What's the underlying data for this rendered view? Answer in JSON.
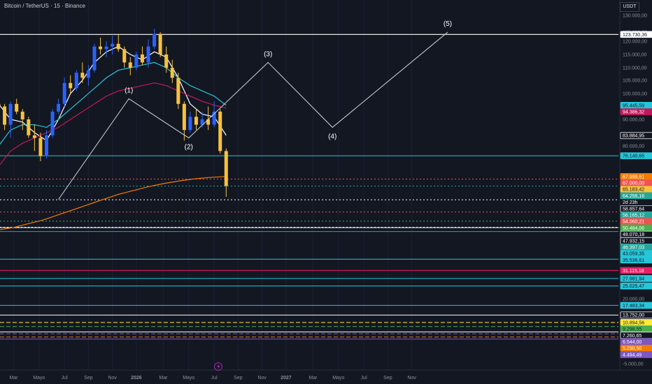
{
  "header": {
    "title": "Bitcoin / TetherUS · 15 · Binance",
    "currency": "USDT"
  },
  "chart_data": {
    "type": "candlestick",
    "title": "Bitcoin / TetherUS · 15 · Binance",
    "y_axis": {
      "side": "right",
      "ticks": [
        "130.000,00",
        "125.000,00",
        "120.000,00",
        "115.000,00",
        "110.000,00",
        "105.000,00",
        "100.000,00",
        "90.000,00",
        "80.000,00",
        "20.000,00",
        "-5.000,00"
      ],
      "tick_values": [
        130000,
        125000,
        120000,
        115000,
        110000,
        105000,
        100000,
        90000,
        80000,
        20000,
        -5000
      ],
      "range": [
        -5000,
        130000
      ]
    },
    "x_axis": {
      "ticks": [
        "Mar",
        "Mayo",
        "Jul",
        "Sep",
        "Nov",
        "2026",
        "Mar",
        "Mayo",
        "Jul",
        "Sep",
        "Nov",
        "2027",
        "Mar",
        "Mayo",
        "Jul",
        "Sep",
        "Nov"
      ],
      "bold_ticks": [
        "2026",
        "2027"
      ]
    },
    "price_levels": [
      {
        "label": "123.730,36",
        "value": 123730.36,
        "color": "#ffffff",
        "bg": "#ffffff",
        "fg": "#131722",
        "style": "solid"
      },
      {
        "label": "95.445,59",
        "value": 95445.59,
        "color": "#26c6da",
        "bg": "#26c6da",
        "fg": "#131722",
        "style": "none"
      },
      {
        "label": "94.386,32",
        "value": 94386.32,
        "color": "#c2185b",
        "bg": "#c2185b",
        "fg": "#ffffff",
        "style": "none"
      },
      {
        "label": "83.884,95",
        "value": 83884.95,
        "color": "#ffffff",
        "bg": "#131722",
        "fg": "#ffffff",
        "style": "none"
      },
      {
        "label": "76.140,65",
        "value": 76140.65,
        "color": "#26c6da",
        "bg": "#26c6da",
        "fg": "#131722",
        "style": "solid"
      },
      {
        "label": "67.999,61",
        "value": 67999.61,
        "color": "#f57c00",
        "bg": "#f57c00",
        "fg": "#ffffff",
        "style": "none"
      },
      {
        "label": "67.000,00",
        "value": 67000,
        "color": "#ef5350",
        "bg": "#ef5350",
        "fg": "#ffffff",
        "style": "dotted"
      },
      {
        "label": "65.183,42",
        "value": 65183.42,
        "color": "#f7c23b",
        "bg": "#f7c23b",
        "fg": "#131722",
        "style": "none"
      },
      {
        "label": "64.256,16",
        "value": 64256.16,
        "color": "#26a69a",
        "bg": "#26a69a",
        "fg": "#ffffff",
        "style": "dotted"
      },
      {
        "label": "58.857,64",
        "value": 58857.64,
        "color": "#ffffff",
        "bg": "#131722",
        "fg": "#ffffff",
        "style": "dotted"
      },
      {
        "label": "56.165,12",
        "value": 56165.12,
        "color": "#26a69a",
        "bg": "#26a69a",
        "fg": "#ffffff",
        "style": "none"
      },
      {
        "label": "54.060,21",
        "value": 54060.21,
        "color": "#ef5350",
        "bg": "#ef5350",
        "fg": "#ffffff",
        "style": "dotted"
      },
      {
        "label": "50.484,06",
        "value": 50484.06,
        "color": "#4caf50",
        "bg": "#4caf50",
        "fg": "#ffffff",
        "style": "dotted"
      },
      {
        "label": "48.070,18",
        "value": 48070.18,
        "color": "#ffffff",
        "bg": "#131722",
        "fg": "#ffffff",
        "style": "dotted"
      },
      {
        "label": "47.932,15",
        "value": 47932.15,
        "color": "#ffffff",
        "bg": "#131722",
        "fg": "#ffffff",
        "style": "solid"
      },
      {
        "label": "46.397,03",
        "value": 46397.03,
        "color": "#26a69a",
        "bg": "#26a69a",
        "fg": "#ffffff",
        "style": "solid"
      },
      {
        "label": "43.059,35",
        "value": 43059.35,
        "color": "#26c6da",
        "bg": "#26c6da",
        "fg": "#131722",
        "style": "none"
      },
      {
        "label": "35.536,61",
        "value": 35536.61,
        "color": "#26c6da",
        "bg": "#26c6da",
        "fg": "#131722",
        "style": "solid"
      },
      {
        "label": "31.115,18",
        "value": 31115.18,
        "color": "#e91e63",
        "bg": "#e91e63",
        "fg": "#ffffff",
        "style": "solid"
      },
      {
        "label": "27.981,94",
        "value": 27981.94,
        "color": "#26c6da",
        "bg": "#26c6da",
        "fg": "#131722",
        "style": "solid"
      },
      {
        "label": "25.025,47",
        "value": 25025.47,
        "color": "#26c6da",
        "bg": "#26c6da",
        "fg": "#131722",
        "style": "solid"
      },
      {
        "label": "17.483,34",
        "value": 17483.34,
        "color": "#26c6da",
        "bg": "#26c6da",
        "fg": "#131722",
        "style": "solid"
      },
      {
        "label": "13.752,00",
        "value": 13752,
        "color": "#ffffff",
        "bg": "#131722",
        "fg": "#ffffff",
        "style": "solid"
      },
      {
        "label": "10.894,56",
        "value": 10894.56,
        "color": "#ffeb3b",
        "bg": "#ffeb3b",
        "fg": "#131722",
        "style": "dashed"
      },
      {
        "label": "9.298,55",
        "value": 9298.55,
        "color": "#4caf50",
        "bg": "#4caf50",
        "fg": "#131722",
        "style": "dashed"
      },
      {
        "label": "7.260,65",
        "value": 7260.65,
        "color": "#ffffff",
        "bg": "#131722",
        "fg": "#ffffff",
        "style": "solid"
      },
      {
        "label": "6.544,00",
        "value": 6544,
        "color": "#7e57c2",
        "bg": "#7e57c2",
        "fg": "#ffffff",
        "style": "dashed"
      },
      {
        "label": "5.290,50",
        "value": 5290.5,
        "color": "#f57c00",
        "bg": "#f57c00",
        "fg": "#ffffff",
        "style": "dashed"
      },
      {
        "label": "4.494,49",
        "value": 4494.49,
        "color": "#7e57c2",
        "bg": "#7e57c2",
        "fg": "#ffffff",
        "style": "solid"
      }
    ],
    "countdown": "2d 23h",
    "wave_labels": [
      "(1)",
      "(2)",
      "(3)",
      "(4)",
      "(5)"
    ],
    "wave_path": [
      [
        0.4,
        59000
      ],
      [
        0.87,
        98000
      ],
      [
        1.27,
        83000
      ],
      [
        1.8,
        112000
      ],
      [
        2.23,
        87000
      ],
      [
        3.0,
        125000
      ]
    ],
    "candles": [
      {
        "t": 0.0,
        "o": 96000,
        "h": 99000,
        "l": 92000,
        "c": 95000
      },
      {
        "t": 0.04,
        "o": 95000,
        "h": 96000,
        "l": 86000,
        "c": 88000
      },
      {
        "t": 0.08,
        "o": 88000,
        "h": 97000,
        "l": 83000,
        "c": 96000
      },
      {
        "t": 0.12,
        "o": 96000,
        "h": 98000,
        "l": 92000,
        "c": 93000
      },
      {
        "t": 0.16,
        "o": 93000,
        "h": 94000,
        "l": 86000,
        "c": 90000
      },
      {
        "t": 0.2,
        "o": 90000,
        "h": 91000,
        "l": 83000,
        "c": 84000
      },
      {
        "t": 0.24,
        "o": 84000,
        "h": 88000,
        "l": 78000,
        "c": 83000
      },
      {
        "t": 0.28,
        "o": 83000,
        "h": 85000,
        "l": 74000,
        "c": 76000
      },
      {
        "t": 0.32,
        "o": 76000,
        "h": 86000,
        "l": 75000,
        "c": 84000
      },
      {
        "t": 0.36,
        "o": 84000,
        "h": 94000,
        "l": 83000,
        "c": 93000
      },
      {
        "t": 0.4,
        "o": 93000,
        "h": 98000,
        "l": 92000,
        "c": 96000
      },
      {
        "t": 0.44,
        "o": 96000,
        "h": 106000,
        "l": 95000,
        "c": 104000
      },
      {
        "t": 0.48,
        "o": 104000,
        "h": 107000,
        "l": 100000,
        "c": 102000
      },
      {
        "t": 0.52,
        "o": 102000,
        "h": 109000,
        "l": 101000,
        "c": 108000
      },
      {
        "t": 0.56,
        "o": 108000,
        "h": 112000,
        "l": 104000,
        "c": 106000
      },
      {
        "t": 0.6,
        "o": 106000,
        "h": 111000,
        "l": 103000,
        "c": 109000
      },
      {
        "t": 0.64,
        "o": 109000,
        "h": 119000,
        "l": 108000,
        "c": 118000
      },
      {
        "t": 0.68,
        "o": 118000,
        "h": 122000,
        "l": 115000,
        "c": 117000
      },
      {
        "t": 0.72,
        "o": 117000,
        "h": 120000,
        "l": 114000,
        "c": 118000
      },
      {
        "t": 0.76,
        "o": 118000,
        "h": 123000,
        "l": 115000,
        "c": 119000
      },
      {
        "t": 0.8,
        "o": 119000,
        "h": 124000,
        "l": 116000,
        "c": 117000
      },
      {
        "t": 0.84,
        "o": 117000,
        "h": 118000,
        "l": 110000,
        "c": 112000
      },
      {
        "t": 0.88,
        "o": 112000,
        "h": 114000,
        "l": 107000,
        "c": 110000
      },
      {
        "t": 0.92,
        "o": 110000,
        "h": 116000,
        "l": 109000,
        "c": 115000
      },
      {
        "t": 0.96,
        "o": 115000,
        "h": 118000,
        "l": 111000,
        "c": 112000
      },
      {
        "t": 1.0,
        "o": 112000,
        "h": 121000,
        "l": 110000,
        "c": 118000
      },
      {
        "t": 1.04,
        "o": 118000,
        "h": 126000,
        "l": 117000,
        "c": 124000
      },
      {
        "t": 1.08,
        "o": 124000,
        "h": 125000,
        "l": 114000,
        "c": 115000
      },
      {
        "t": 1.12,
        "o": 115000,
        "h": 118000,
        "l": 108000,
        "c": 110000
      },
      {
        "t": 1.16,
        "o": 110000,
        "h": 113000,
        "l": 104000,
        "c": 106000
      },
      {
        "t": 1.2,
        "o": 106000,
        "h": 108000,
        "l": 94000,
        "c": 96000
      },
      {
        "t": 1.24,
        "o": 96000,
        "h": 97000,
        "l": 82000,
        "c": 86000
      },
      {
        "t": 1.28,
        "o": 86000,
        "h": 93000,
        "l": 85000,
        "c": 91000
      },
      {
        "t": 1.32,
        "o": 91000,
        "h": 94000,
        "l": 86000,
        "c": 88000
      },
      {
        "t": 1.36,
        "o": 88000,
        "h": 93000,
        "l": 87000,
        "c": 90000
      },
      {
        "t": 1.4,
        "o": 90000,
        "h": 95000,
        "l": 86000,
        "c": 88000
      },
      {
        "t": 1.44,
        "o": 88000,
        "h": 97000,
        "l": 87000,
        "c": 93000
      },
      {
        "t": 1.48,
        "o": 93000,
        "h": 94000,
        "l": 77000,
        "c": 78000
      },
      {
        "t": 1.52,
        "o": 78000,
        "h": 79000,
        "l": 60000,
        "c": 64256
      }
    ],
    "moving_averages": [
      {
        "color": "#ffffff",
        "points": [
          [
            0.0,
            96000
          ],
          [
            0.08,
            90000
          ],
          [
            0.16,
            89000
          ],
          [
            0.24,
            85000
          ],
          [
            0.32,
            82000
          ],
          [
            0.4,
            90000
          ],
          [
            0.48,
            100000
          ],
          [
            0.56,
            105000
          ],
          [
            0.64,
            112000
          ],
          [
            0.72,
            116000
          ],
          [
            0.8,
            118000
          ],
          [
            0.88,
            115000
          ],
          [
            0.96,
            113000
          ],
          [
            1.04,
            116000
          ],
          [
            1.12,
            114000
          ],
          [
            1.2,
            106000
          ],
          [
            1.28,
            96000
          ],
          [
            1.36,
            92000
          ],
          [
            1.44,
            91000
          ],
          [
            1.52,
            84000
          ]
        ]
      },
      {
        "color": "#26c6da",
        "points": [
          [
            0.0,
            80000
          ],
          [
            0.08,
            86000
          ],
          [
            0.16,
            88000
          ],
          [
            0.24,
            88000
          ],
          [
            0.32,
            87000
          ],
          [
            0.4,
            90000
          ],
          [
            0.48,
            94000
          ],
          [
            0.56,
            98000
          ],
          [
            0.64,
            102000
          ],
          [
            0.72,
            106000
          ],
          [
            0.8,
            109000
          ],
          [
            0.88,
            110000
          ],
          [
            0.96,
            111000
          ],
          [
            1.04,
            112000
          ],
          [
            1.12,
            110000
          ],
          [
            1.2,
            106000
          ],
          [
            1.28,
            103000
          ],
          [
            1.36,
            101000
          ],
          [
            1.44,
            99000
          ],
          [
            1.52,
            95445
          ]
        ]
      },
      {
        "color": "#c2185b",
        "points": [
          [
            0.0,
            72000
          ],
          [
            0.08,
            78000
          ],
          [
            0.16,
            81000
          ],
          [
            0.24,
            83000
          ],
          [
            0.32,
            85000
          ],
          [
            0.4,
            87000
          ],
          [
            0.48,
            90000
          ],
          [
            0.56,
            93000
          ],
          [
            0.64,
            96000
          ],
          [
            0.72,
            99000
          ],
          [
            0.8,
            101000
          ],
          [
            0.88,
            102000
          ],
          [
            0.96,
            103000
          ],
          [
            1.04,
            104000
          ],
          [
            1.12,
            103000
          ],
          [
            1.2,
            101000
          ],
          [
            1.28,
            99000
          ],
          [
            1.36,
            97000
          ],
          [
            1.44,
            95500
          ],
          [
            1.52,
            94386
          ]
        ]
      },
      {
        "color": "#f57c00",
        "points": [
          [
            0.0,
            47000
          ],
          [
            0.1,
            48000
          ],
          [
            0.2,
            49500
          ],
          [
            0.3,
            51000
          ],
          [
            0.4,
            53000
          ],
          [
            0.5,
            55000
          ],
          [
            0.6,
            57000
          ],
          [
            0.7,
            59000
          ],
          [
            0.8,
            61000
          ],
          [
            0.9,
            62500
          ],
          [
            1.0,
            64000
          ],
          [
            1.1,
            65200
          ],
          [
            1.2,
            66200
          ],
          [
            1.3,
            67000
          ],
          [
            1.4,
            67600
          ],
          [
            1.52,
            68000
          ]
        ]
      }
    ]
  }
}
